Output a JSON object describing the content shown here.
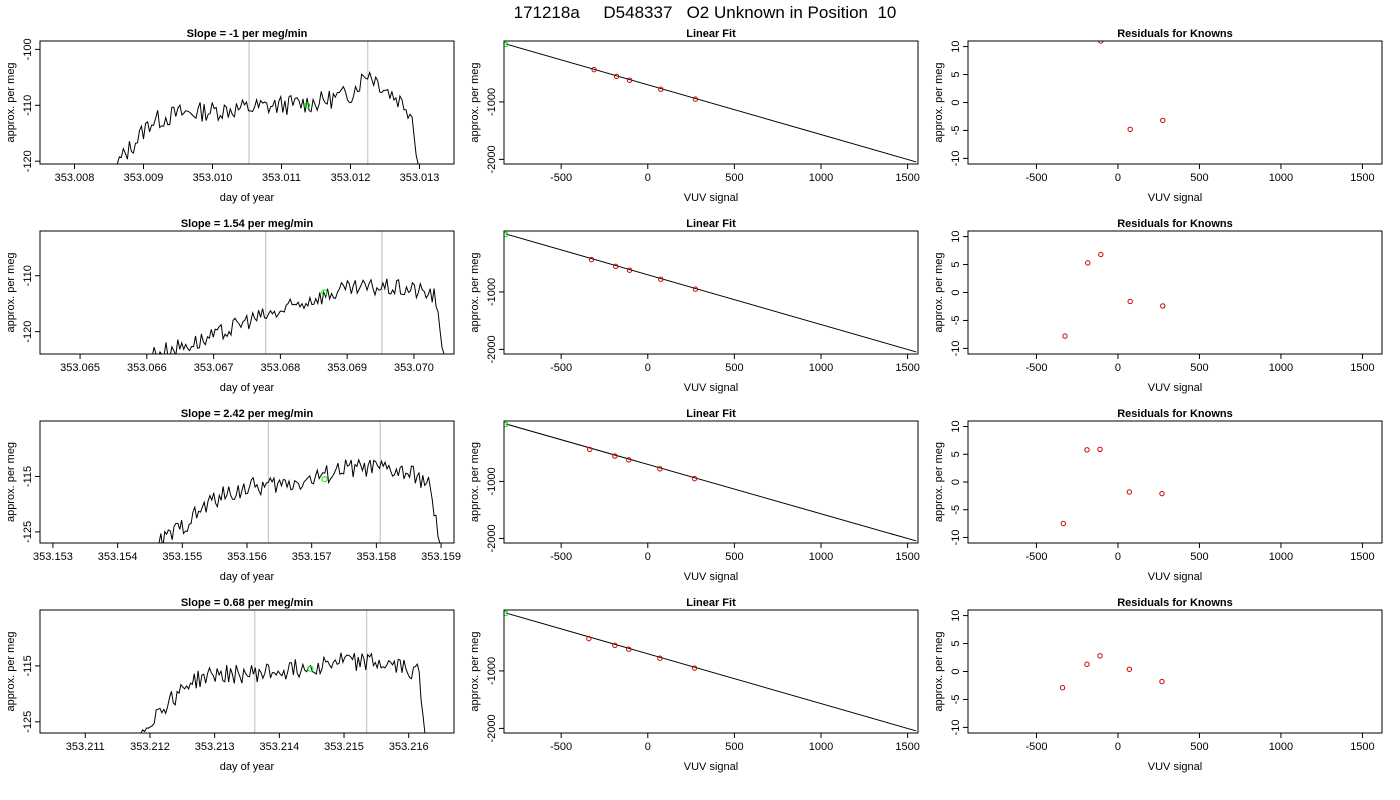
{
  "title": "171218a     D548337   O2 Unknown in Position  10",
  "colors": {
    "trace": "#000000",
    "marker": "#00ee00",
    "known": "#cc0000",
    "vline": "#c8c8c8"
  },
  "chart_data": [
    {
      "type": "line",
      "title": "Slope =  -1  per meg/min",
      "xlabel": "day of year",
      "ylabel": "approx. per meg",
      "xlim": [
        353.0075,
        353.0135
      ],
      "ylim": [
        -120.5,
        -98.5
      ],
      "xticks": [
        353.008,
        353.009,
        353.01,
        353.011,
        353.012,
        353.013
      ],
      "xtick_labels": [
        "353.008",
        "353.009",
        "353.010",
        "353.011",
        "353.012",
        "353.013"
      ],
      "yticks": [
        -120,
        -110,
        -100
      ],
      "ytick_labels": [
        "-120",
        "-110",
        "-100"
      ],
      "vlines": [
        353.01053,
        353.01225
      ],
      "marker": {
        "x": 353.01137,
        "y": -110.0
      },
      "trace": {
        "x_start": 353.00862,
        "x_end": 353.01298,
        "n": 150,
        "noise_amp": 1.8,
        "knots_x": [
          353.00862,
          353.00885,
          353.0091,
          353.0095,
          353.01,
          353.0105,
          353.011,
          353.0115,
          353.012,
          353.01225,
          353.0125,
          353.0128,
          353.0129,
          353.01298
        ],
        "knots_y": [
          -120.5,
          -117.0,
          -113.0,
          -111.5,
          -111.0,
          -110.5,
          -110.0,
          -109.5,
          -108.0,
          -104.0,
          -107.0,
          -110.0,
          -112.0,
          -120.5
        ]
      }
    },
    {
      "type": "line",
      "title": "Linear Fit",
      "xlabel": "VUV signal",
      "ylabel": "approx. per meg",
      "xlim": [
        -830,
        1560
      ],
      "ylim": [
        -2080,
        60
      ],
      "xticks": [
        -500,
        0,
        500,
        1000,
        1500
      ],
      "xtick_labels": [
        "-500",
        "0",
        "500",
        "1000",
        "1500"
      ],
      "yticks": [
        -2000,
        -1000
      ],
      "ytick_labels": [
        "-2000",
        "-1000"
      ],
      "line": {
        "x": [
          -820,
          1550
        ],
        "y": [
          8.8,
          -2044
        ]
      },
      "unknown": [
        {
          "x": -820,
          "y": 0
        }
      ],
      "knowns": [
        {
          "x": -310,
          "y": -438
        },
        {
          "x": -180,
          "y": -555
        },
        {
          "x": -105,
          "y": -622
        },
        {
          "x": 75,
          "y": -779
        },
        {
          "x": 275,
          "y": -951
        }
      ]
    },
    {
      "type": "scatter",
      "title": "Residuals for Knowns",
      "xlabel": "VUV signal",
      "ylabel": "approx. per meg",
      "xlim": [
        -920,
        1620
      ],
      "ylim": [
        -11,
        11
      ],
      "xticks": [
        -500,
        0,
        500,
        1000,
        1500
      ],
      "xtick_labels": [
        "-500",
        "0",
        "500",
        "1000",
        "1500"
      ],
      "yticks": [
        -10,
        -5,
        0,
        5,
        10
      ],
      "ytick_labels": [
        "-10",
        "-5",
        "0",
        "5",
        "10"
      ],
      "knowns": [
        {
          "x": -105,
          "y": 11.0
        },
        {
          "x": 75,
          "y": -4.8
        },
        {
          "x": 275,
          "y": -3.2
        }
      ]
    },
    {
      "type": "line",
      "title": "Slope =  1.54  per meg/min",
      "xlabel": "day of year",
      "ylabel": "approx. per meg",
      "xlim": [
        353.0644,
        353.0706
      ],
      "ylim": [
        -124,
        -102
      ],
      "xticks": [
        353.065,
        353.066,
        353.067,
        353.068,
        353.069,
        353.07
      ],
      "xtick_labels": [
        "353.065",
        "353.066",
        "353.067",
        "353.068",
        "353.069",
        "353.070"
      ],
      "yticks": [
        -120,
        -110
      ],
      "ytick_labels": [
        "-120",
        "-110"
      ],
      "vlines": [
        353.06778,
        353.06952
      ],
      "marker": {
        "x": 353.06866,
        "y": -113.0
      },
      "trace": {
        "x_start": 353.06605,
        "x_end": 353.07045,
        "n": 150,
        "noise_amp": 1.6,
        "knots_x": [
          353.06605,
          353.0664,
          353.067,
          353.0675,
          353.068,
          353.0685,
          353.069,
          353.0695,
          353.07,
          353.0703,
          353.07045
        ],
        "knots_y": [
          -124.0,
          -123.0,
          -121.0,
          -118.0,
          -116.5,
          -114.0,
          -112.5,
          -112.0,
          -112.5,
          -113.5,
          -124.0
        ]
      }
    },
    {
      "type": "line",
      "title": "Linear Fit",
      "xlabel": "VUV signal",
      "ylabel": "approx. per meg",
      "xlim": [
        -830,
        1560
      ],
      "ylim": [
        -2080,
        60
      ],
      "xticks": [
        -500,
        0,
        500,
        1000,
        1500
      ],
      "xtick_labels": [
        "-500",
        "0",
        "500",
        "1000",
        "1500"
      ],
      "yticks": [
        -2000,
        -1000
      ],
      "ytick_labels": [
        "-2000",
        "-1000"
      ],
      "line": {
        "x": [
          -820,
          1550
        ],
        "y": [
          8.8,
          -2044
        ]
      },
      "unknown": [
        {
          "x": -820,
          "y": 0
        }
      ],
      "knowns": [
        {
          "x": -325,
          "y": -438
        },
        {
          "x": -185,
          "y": -555
        },
        {
          "x": -105,
          "y": -622
        },
        {
          "x": 75,
          "y": -779
        },
        {
          "x": 275,
          "y": -951
        }
      ]
    },
    {
      "type": "scatter",
      "title": "Residuals for Knowns",
      "xlabel": "VUV signal",
      "ylabel": "approx. per meg",
      "xlim": [
        -920,
        1620
      ],
      "ylim": [
        -11,
        11
      ],
      "xticks": [
        -500,
        0,
        500,
        1000,
        1500
      ],
      "xtick_labels": [
        "-500",
        "0",
        "500",
        "1000",
        "1500"
      ],
      "yticks": [
        -10,
        -5,
        0,
        5,
        10
      ],
      "ytick_labels": [
        "-10",
        "-5",
        "0",
        "5",
        "10"
      ],
      "knowns": [
        {
          "x": -325,
          "y": -7.8
        },
        {
          "x": -185,
          "y": 5.3
        },
        {
          "x": -105,
          "y": 6.8
        },
        {
          "x": 75,
          "y": -1.6
        },
        {
          "x": 275,
          "y": -2.4
        }
      ]
    },
    {
      "type": "line",
      "title": "Slope =  2.42  per meg/min",
      "xlabel": "day of year",
      "ylabel": "approx. per meg",
      "xlim": [
        353.1528,
        353.1592
      ],
      "ylim": [
        -127,
        -105
      ],
      "xticks": [
        353.153,
        353.154,
        353.155,
        353.156,
        353.157,
        353.158,
        353.159
      ],
      "xtick_labels": [
        "353.153",
        "353.154",
        "353.155",
        "353.156",
        "353.157",
        "353.158",
        "353.159"
      ],
      "yticks": [
        -125,
        -115
      ],
      "ytick_labels": [
        "-125",
        "-115"
      ],
      "vlines": [
        353.15633,
        353.15806
      ],
      "marker": {
        "x": 353.1572,
        "y": -115.5
      },
      "trace": {
        "x_start": 353.15464,
        "x_end": 353.15898,
        "n": 150,
        "noise_amp": 1.7,
        "knots_x": [
          353.15464,
          353.155,
          353.1555,
          353.156,
          353.1565,
          353.157,
          353.1575,
          353.158,
          353.1585,
          353.1588,
          353.15898
        ],
        "knots_y": [
          -127.0,
          -124.0,
          -119.0,
          -117.0,
          -116.5,
          -115.5,
          -113.5,
          -113.5,
          -114.5,
          -116.0,
          -127.0
        ]
      }
    },
    {
      "type": "line",
      "title": "Linear Fit",
      "xlabel": "VUV signal",
      "ylabel": "approx. per meg",
      "xlim": [
        -830,
        1560
      ],
      "ylim": [
        -2080,
        60
      ],
      "xticks": [
        -500,
        0,
        500,
        1000,
        1500
      ],
      "xtick_labels": [
        "-500",
        "0",
        "500",
        "1000",
        "1500"
      ],
      "yticks": [
        -2000,
        -1000
      ],
      "ytick_labels": [
        "-2000",
        "-1000"
      ],
      "line": {
        "x": [
          -820,
          1550
        ],
        "y": [
          8.8,
          -2044
        ]
      },
      "unknown": [
        {
          "x": -820,
          "y": 0
        }
      ],
      "knowns": [
        {
          "x": -335,
          "y": -438
        },
        {
          "x": -190,
          "y": -555
        },
        {
          "x": -110,
          "y": -622
        },
        {
          "x": 70,
          "y": -779
        },
        {
          "x": 270,
          "y": -951
        }
      ]
    },
    {
      "type": "scatter",
      "title": "Residuals for Knowns",
      "xlabel": "VUV signal",
      "ylabel": "approx. per meg",
      "xlim": [
        -920,
        1620
      ],
      "ylim": [
        -11,
        11
      ],
      "xticks": [
        -500,
        0,
        500,
        1000,
        1500
      ],
      "xtick_labels": [
        "-500",
        "0",
        "500",
        "1000",
        "1500"
      ],
      "yticks": [
        -10,
        -5,
        0,
        5,
        10
      ],
      "ytick_labels": [
        "-10",
        "-5",
        "0",
        "5",
        "10"
      ],
      "knowns": [
        {
          "x": -335,
          "y": -7.5
        },
        {
          "x": -190,
          "y": 5.8
        },
        {
          "x": -110,
          "y": 5.9
        },
        {
          "x": 70,
          "y": -1.8
        },
        {
          "x": 270,
          "y": -2.1
        }
      ]
    },
    {
      "type": "line",
      "title": "Slope =  0.68  per meg/min",
      "xlabel": "day of year",
      "ylabel": "approx. per meg",
      "xlim": [
        353.2103,
        353.2167
      ],
      "ylim": [
        -127,
        -105
      ],
      "xticks": [
        353.211,
        353.212,
        353.213,
        353.214,
        353.215,
        353.216
      ],
      "xtick_labels": [
        "353.211",
        "353.212",
        "353.213",
        "353.214",
        "353.215",
        "353.216"
      ],
      "yticks": [
        -125,
        -115
      ],
      "ytick_labels": [
        "-125",
        "-115"
      ],
      "vlines": [
        353.21362,
        353.21535
      ],
      "marker": {
        "x": 353.21448,
        "y": -115.5
      },
      "trace": {
        "x_start": 353.21186,
        "x_end": 353.21625,
        "n": 150,
        "noise_amp": 1.7,
        "knots_x": [
          353.21186,
          353.2121,
          353.2126,
          353.213,
          353.2135,
          353.214,
          353.2145,
          353.215,
          353.2155,
          353.216,
          353.21615,
          353.21625
        ],
        "knots_y": [
          -127.0,
          -123.5,
          -118.0,
          -116.5,
          -116.5,
          -116.0,
          -115.0,
          -114.0,
          -114.5,
          -115.5,
          -116.0,
          -127.0
        ]
      }
    },
    {
      "type": "line",
      "title": "Linear Fit",
      "xlabel": "VUV signal",
      "ylabel": "approx. per meg",
      "xlim": [
        -830,
        1560
      ],
      "ylim": [
        -2080,
        60
      ],
      "xticks": [
        -500,
        0,
        500,
        1000,
        1500
      ],
      "xtick_labels": [
        "-500",
        "0",
        "500",
        "1000",
        "1500"
      ],
      "yticks": [
        -2000,
        -1000
      ],
      "ytick_labels": [
        "-2000",
        "-1000"
      ],
      "line": {
        "x": [
          -820,
          1550
        ],
        "y": [
          8.8,
          -2044
        ]
      },
      "unknown": [
        {
          "x": -820,
          "y": 0
        }
      ],
      "knowns": [
        {
          "x": -340,
          "y": -438
        },
        {
          "x": -190,
          "y": -555
        },
        {
          "x": -110,
          "y": -622
        },
        {
          "x": 70,
          "y": -779
        },
        {
          "x": 270,
          "y": -951
        }
      ]
    },
    {
      "type": "scatter",
      "title": "Residuals for Knowns",
      "xlabel": "VUV signal",
      "ylabel": "approx. per meg",
      "xlim": [
        -920,
        1620
      ],
      "ylim": [
        -11,
        11
      ],
      "xticks": [
        -500,
        0,
        500,
        1000,
        1500
      ],
      "xtick_labels": [
        "-500",
        "0",
        "500",
        "1000",
        "1500"
      ],
      "yticks": [
        -10,
        -5,
        0,
        5,
        10
      ],
      "ytick_labels": [
        "-10",
        "-5",
        "0",
        "5",
        "10"
      ],
      "knowns": [
        {
          "x": -340,
          "y": -2.9
        },
        {
          "x": -190,
          "y": 1.3
        },
        {
          "x": -110,
          "y": 2.8
        },
        {
          "x": 70,
          "y": 0.4
        },
        {
          "x": 270,
          "y": -1.8
        }
      ]
    }
  ]
}
